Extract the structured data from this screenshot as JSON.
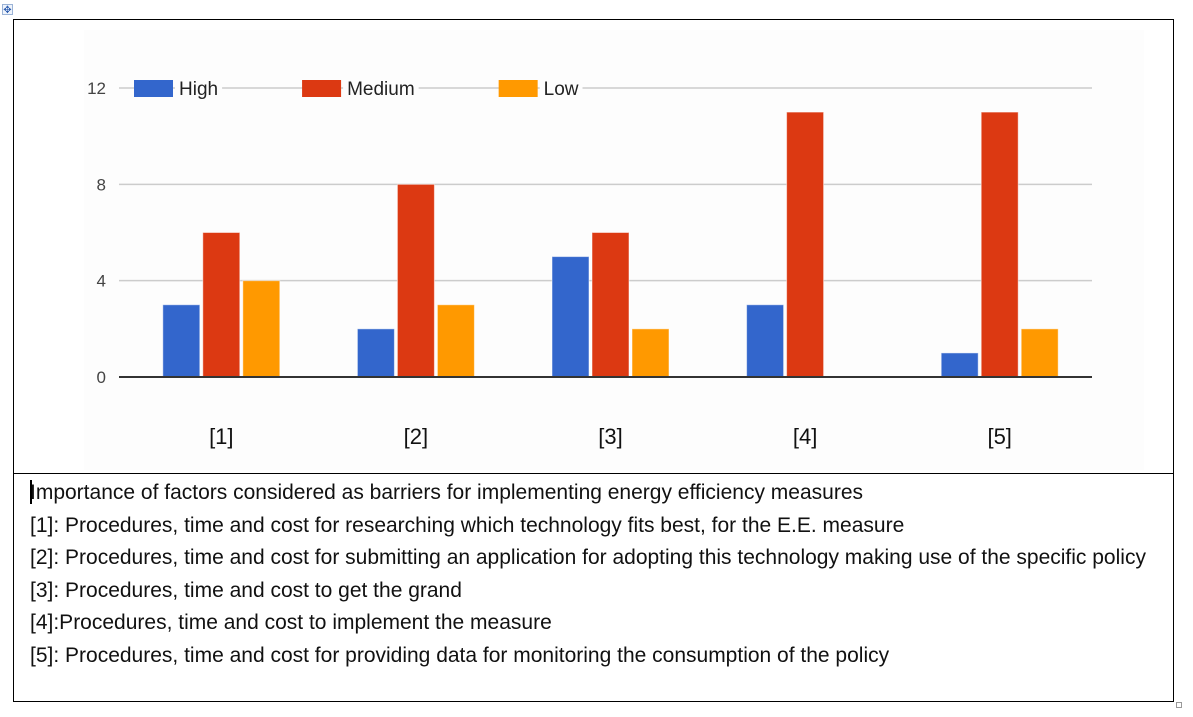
{
  "chart_data": {
    "type": "bar",
    "title": "",
    "xlabel": "",
    "ylabel": "",
    "categories": [
      "[1]",
      "[2]",
      "[3]",
      "[4]",
      "[5]"
    ],
    "series": [
      {
        "name": "High",
        "color": "#3366cc",
        "values": [
          3,
          2,
          5,
          3,
          1
        ]
      },
      {
        "name": "Medium",
        "color": "#dc3912",
        "values": [
          6,
          8,
          6,
          11,
          11
        ]
      },
      {
        "name": "Low",
        "color": "#ff9900",
        "values": [
          4,
          3,
          2,
          0,
          2
        ]
      }
    ],
    "ylim": [
      0,
      12
    ],
    "yticks": [
      0,
      4,
      8,
      12
    ],
    "grid": true,
    "legend_position": "top-left"
  },
  "description": {
    "title": "Importance of factors considered as barriers for implementing energy efficiency measures",
    "items": [
      "[1]: Procedures, time and cost for researching which technology fits best, for the E.E. measure",
      "[2]: Procedures, time and cost for submitting an application for adopting this technology making use of the specific policy",
      "[3]: Procedures, time and cost to get the grand",
      "[4]:Procedures, time and cost to implement the measure",
      "[5]: Procedures, time and cost for providing data for monitoring the consumption of the policy"
    ]
  },
  "icons": {
    "table_move": "move-arrows-icon",
    "table_resize": "resize-handle-icon"
  }
}
